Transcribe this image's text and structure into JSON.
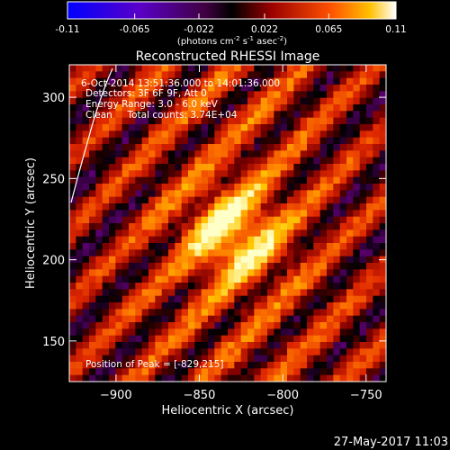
{
  "chart_data": {
    "type": "heatmap",
    "title": "Reconstructed RHESSI Image",
    "xlabel": "Heliocentric X (arcsec)",
    "ylabel": "Heliocentric Y (arcsec)",
    "xlim": [
      -928,
      -738
    ],
    "ylim": [
      125,
      320
    ],
    "x_ticks": [
      -900,
      -850,
      -800,
      -750
    ],
    "y_ticks": [
      150,
      200,
      250,
      300
    ],
    "colorbar": {
      "range": [
        -0.11,
        0.11
      ],
      "ticks": [
        "-0.11",
        "-0.065",
        "-0.022",
        "0.022",
        "0.065",
        "0.11"
      ],
      "unit_label": "(photons cm-2 s-1 asec-2)",
      "unit_parts": [
        "(photons cm",
        "-2",
        " s",
        "-1",
        " asec",
        "-2",
        ")"
      ]
    },
    "annotations": [
      "6-Oct-2014 13:51:36.000 to 14:01:36.000",
      "Detectors: 3F 6F 9F, Att 0",
      "Energy Range: 3.0 - 6.0 keV",
      "Clean     Total counts: 3.74E+04"
    ],
    "peak_label": "Position of Peak = [-829,215]",
    "peak": [
      -829,
      215
    ],
    "colormap": "red-temperature",
    "limb_curve": true,
    "grid": false
  },
  "timestamp": "27-May-2017 11:03"
}
